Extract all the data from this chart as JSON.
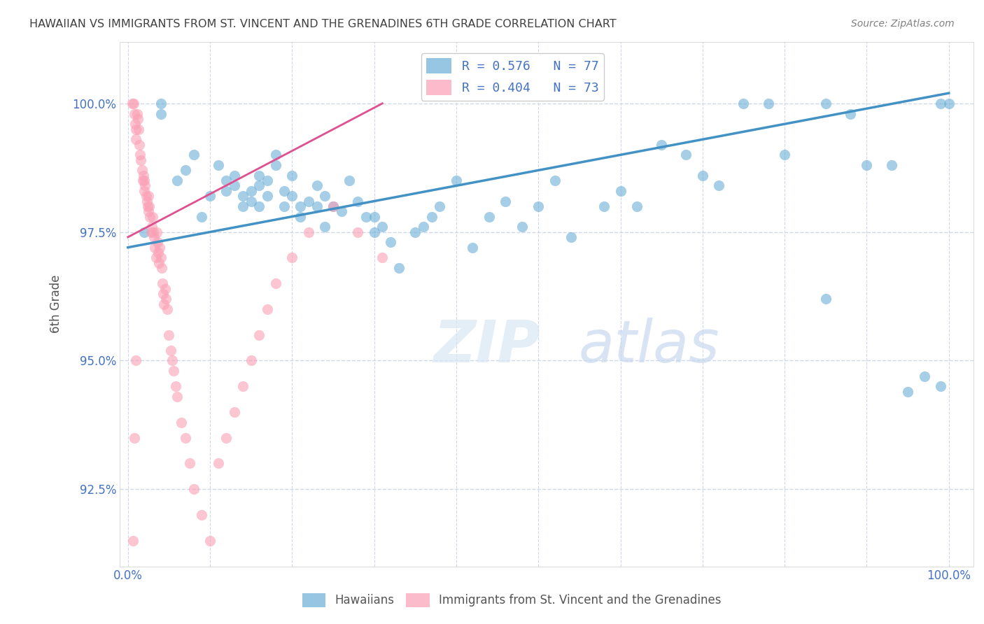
{
  "title": "HAWAIIAN VS IMMIGRANTS FROM ST. VINCENT AND THE GRENADINES 6TH GRADE CORRELATION CHART",
  "source": "Source: ZipAtlas.com",
  "ylabel": "6th Grade",
  "y_ticks": [
    92.5,
    95.0,
    97.5,
    100.0
  ],
  "y_tick_labels": [
    "92.5%",
    "95.0%",
    "97.5%",
    "100.0%"
  ],
  "x_ticks": [
    0.0,
    0.1,
    0.2,
    0.3,
    0.4,
    0.5,
    0.6,
    0.7,
    0.8,
    0.9,
    1.0
  ],
  "ylim": [
    91.0,
    101.2
  ],
  "xlim": [
    -0.01,
    1.03
  ],
  "blue_color": "#6baed6",
  "pink_color": "#fa9fb5",
  "trendline_blue": "#4292c6",
  "trendline_pink": "#e05090",
  "legend_blue_r": "R = 0.576",
  "legend_blue_n": "N = 77",
  "legend_pink_r": "R = 0.404",
  "legend_pink_n": "N = 73",
  "blue_scatter_x": [
    0.02,
    0.04,
    0.04,
    0.06,
    0.07,
    0.08,
    0.09,
    0.1,
    0.11,
    0.12,
    0.12,
    0.13,
    0.13,
    0.14,
    0.14,
    0.15,
    0.15,
    0.16,
    0.16,
    0.16,
    0.17,
    0.17,
    0.18,
    0.18,
    0.19,
    0.19,
    0.2,
    0.2,
    0.21,
    0.21,
    0.22,
    0.23,
    0.23,
    0.24,
    0.24,
    0.25,
    0.26,
    0.27,
    0.28,
    0.29,
    0.3,
    0.3,
    0.31,
    0.32,
    0.33,
    0.35,
    0.36,
    0.37,
    0.38,
    0.4,
    0.42,
    0.44,
    0.46,
    0.48,
    0.5,
    0.52,
    0.54,
    0.58,
    0.6,
    0.62,
    0.65,
    0.68,
    0.7,
    0.72,
    0.75,
    0.78,
    0.8,
    0.85,
    0.88,
    0.9,
    0.93,
    0.95,
    0.97,
    0.99,
    1.0,
    0.85,
    0.99
  ],
  "blue_scatter_y": [
    97.5,
    100.0,
    99.8,
    98.5,
    98.7,
    99.0,
    97.8,
    98.2,
    98.8,
    98.5,
    98.3,
    98.6,
    98.4,
    98.0,
    98.2,
    98.3,
    98.1,
    98.4,
    98.0,
    98.6,
    98.2,
    98.5,
    98.8,
    99.0,
    98.0,
    98.3,
    98.2,
    98.6,
    97.8,
    98.0,
    98.1,
    98.4,
    98.0,
    98.2,
    97.6,
    98.0,
    97.9,
    98.5,
    98.1,
    97.8,
    97.5,
    97.8,
    97.6,
    97.3,
    96.8,
    97.5,
    97.6,
    97.8,
    98.0,
    98.5,
    97.2,
    97.8,
    98.1,
    97.6,
    98.0,
    98.5,
    97.4,
    98.0,
    98.3,
    98.0,
    99.2,
    99.0,
    98.6,
    98.4,
    100.0,
    100.0,
    99.0,
    100.0,
    99.8,
    98.8,
    98.8,
    94.4,
    94.7,
    94.5,
    100.0,
    96.2,
    100.0
  ],
  "pink_scatter_x": [
    0.005,
    0.007,
    0.008,
    0.009,
    0.01,
    0.01,
    0.011,
    0.012,
    0.013,
    0.014,
    0.015,
    0.016,
    0.017,
    0.018,
    0.019,
    0.02,
    0.02,
    0.021,
    0.022,
    0.023,
    0.024,
    0.025,
    0.025,
    0.026,
    0.027,
    0.028,
    0.029,
    0.03,
    0.031,
    0.032,
    0.033,
    0.034,
    0.035,
    0.036,
    0.037,
    0.038,
    0.039,
    0.04,
    0.041,
    0.042,
    0.043,
    0.044,
    0.045,
    0.046,
    0.048,
    0.05,
    0.052,
    0.054,
    0.056,
    0.058,
    0.06,
    0.065,
    0.07,
    0.075,
    0.08,
    0.09,
    0.1,
    0.11,
    0.12,
    0.13,
    0.14,
    0.15,
    0.16,
    0.17,
    0.18,
    0.2,
    0.22,
    0.25,
    0.28,
    0.31,
    0.006,
    0.008,
    0.01
  ],
  "pink_scatter_y": [
    100.0,
    100.0,
    99.8,
    99.6,
    99.5,
    99.3,
    99.8,
    99.7,
    99.5,
    99.2,
    99.0,
    98.9,
    98.7,
    98.5,
    98.6,
    98.3,
    98.5,
    98.4,
    98.2,
    98.1,
    98.0,
    97.9,
    98.2,
    98.0,
    97.8,
    97.5,
    97.6,
    97.8,
    97.5,
    97.4,
    97.2,
    97.0,
    97.5,
    97.3,
    97.1,
    96.9,
    97.2,
    97.0,
    96.8,
    96.5,
    96.3,
    96.1,
    96.4,
    96.2,
    96.0,
    95.5,
    95.2,
    95.0,
    94.8,
    94.5,
    94.3,
    93.8,
    93.5,
    93.0,
    92.5,
    92.0,
    91.5,
    93.0,
    93.5,
    94.0,
    94.5,
    95.0,
    95.5,
    96.0,
    96.5,
    97.0,
    97.5,
    98.0,
    97.5,
    97.0,
    91.5,
    93.5,
    95.0
  ],
  "blue_trend_x": [
    0.0,
    1.0
  ],
  "blue_trend_y": [
    97.2,
    100.2
  ],
  "pink_trend_x": [
    0.0,
    0.31
  ],
  "pink_trend_y": [
    97.4,
    100.0
  ],
  "grid_color": "#d0d8e8",
  "axis_color": "#4472c4",
  "title_color": "#404040",
  "source_color": "#808080",
  "bottom_legend_labels": [
    "Hawaiians",
    "Immigrants from St. Vincent and the Grenadines"
  ]
}
